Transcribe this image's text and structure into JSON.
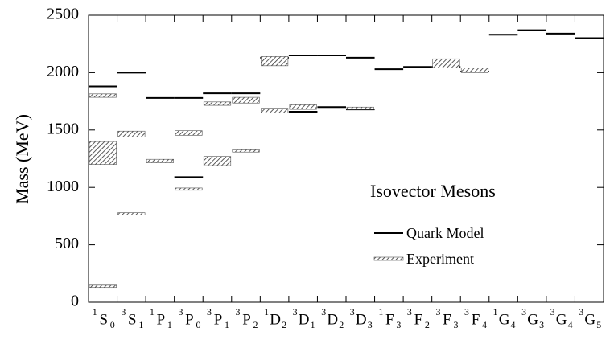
{
  "chart_data": {
    "type": "level",
    "y_label": "Mass   (MeV)",
    "annotation": "Isovector Mesons",
    "categories": [
      {
        "sup": "1",
        "letter": "S",
        "sub": "0"
      },
      {
        "sup": "3",
        "letter": "S",
        "sub": "1"
      },
      {
        "sup": "1",
        "letter": "P",
        "sub": "1"
      },
      {
        "sup": "3",
        "letter": "P",
        "sub": "0"
      },
      {
        "sup": "3",
        "letter": "P",
        "sub": "1"
      },
      {
        "sup": "3",
        "letter": "P",
        "sub": "2"
      },
      {
        "sup": "1",
        "letter": "D",
        "sub": "2"
      },
      {
        "sup": "3",
        "letter": "D",
        "sub": "1"
      },
      {
        "sup": "3",
        "letter": "D",
        "sub": "2"
      },
      {
        "sup": "3",
        "letter": "D",
        "sub": "3"
      },
      {
        "sup": "1",
        "letter": "F",
        "sub": "3"
      },
      {
        "sup": "3",
        "letter": "F",
        "sub": "2"
      },
      {
        "sup": "3",
        "letter": "F",
        "sub": "3"
      },
      {
        "sup": "3",
        "letter": "F",
        "sub": "4"
      },
      {
        "sup": "1",
        "letter": "G",
        "sub": "4"
      },
      {
        "sup": "3",
        "letter": "G",
        "sub": "3"
      },
      {
        "sup": "3",
        "letter": "G",
        "sub": "4"
      },
      {
        "sup": "3",
        "letter": "G",
        "sub": "5"
      }
    ],
    "series": [
      {
        "name": "Quark Model",
        "color": "#000000",
        "x": [
          0,
          0,
          1,
          2,
          3,
          3,
          4,
          5,
          6,
          7,
          7,
          8,
          8,
          9,
          9,
          10,
          11,
          12,
          13,
          14,
          15,
          16,
          17
        ],
        "values": [
          1880,
          150,
          2000,
          1780,
          1780,
          1090,
          1820,
          1820,
          2130,
          2150,
          1660,
          2150,
          1700,
          2130,
          1680,
          2030,
          2050,
          2050,
          2010,
          2330,
          2370,
          2340,
          2300
        ]
      },
      {
        "name": "Experiment",
        "color": "#555555",
        "x": [
          0,
          0,
          0,
          1,
          1,
          2,
          3,
          3,
          4,
          4,
          5,
          5,
          6,
          6,
          7,
          9,
          12,
          13
        ],
        "values": [
          1800,
          1300,
          138,
          1465,
          770,
          1230,
          1474,
          985,
          1730,
          1230,
          1760,
          1318,
          2100,
          1670,
          1700,
          1690,
          2080,
          2020
        ],
        "errors": [
          15,
          100,
          10,
          25,
          10,
          15,
          20,
          10,
          15,
          40,
          25,
          10,
          40,
          20,
          20,
          10,
          40,
          20
        ]
      }
    ],
    "ylim": [
      0,
      2500
    ],
    "yticks": [
      0,
      500,
      1000,
      1500,
      2000,
      2500
    ]
  }
}
